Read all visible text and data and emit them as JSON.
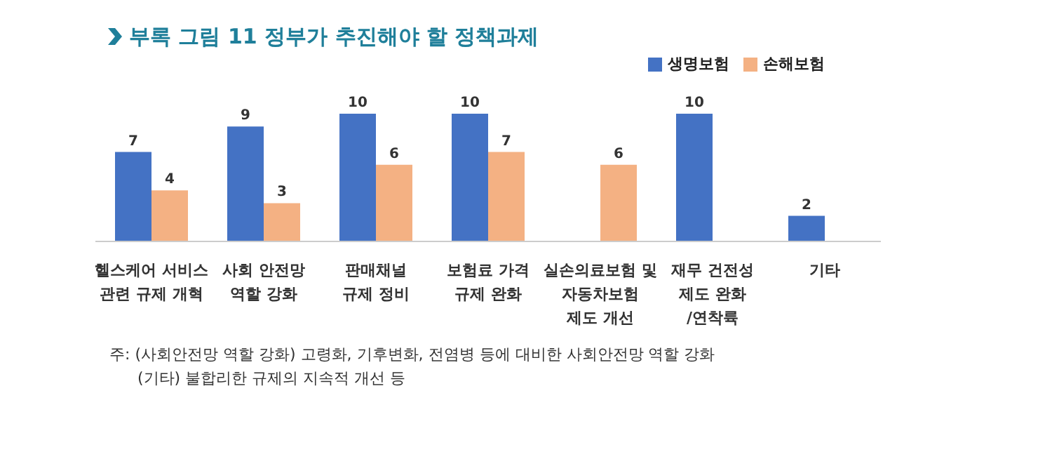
{
  "chart_data": {
    "type": "bar",
    "title": "부록 그림 11 정부가 추진해야 할 정책과제",
    "categories": [
      "헬스케어 서비스\n관련 규제 개혁",
      "사회 안전망\n역할 강화",
      "판매채널\n규제 정비",
      "보험료 가격\n규제 완화",
      "실손의료보험 및\n자동차보험\n제도 개선",
      "재무 건전성\n제도 완화\n/연착륙",
      "기타"
    ],
    "series": [
      {
        "name": "생명보험",
        "color": "#4472c4",
        "values": [
          7,
          9,
          10,
          10,
          null,
          10,
          2
        ]
      },
      {
        "name": "손해보험",
        "color": "#f4b183",
        "values": [
          4,
          3,
          6,
          7,
          6,
          null,
          null
        ]
      }
    ],
    "data_labels": true,
    "legend": "top right",
    "grid": false,
    "annotations": [
      "주: (사회안전망 역할 강화) 고령화, 기후변화, 전염병 등에 대비한 사회안전망 역할 강화",
      "(기타) 불합리한 규제의 지속적 개선 등"
    ]
  }
}
